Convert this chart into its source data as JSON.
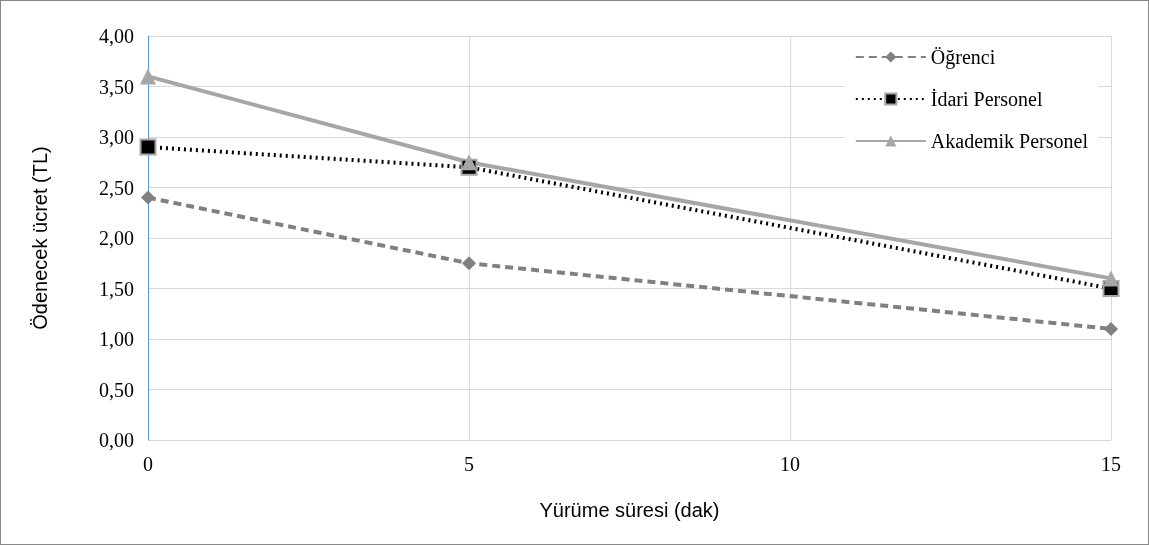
{
  "chart_data": {
    "type": "line",
    "xlabel": "Yürüme süresi (dak)",
    "ylabel": "Ödenecek ücret (TL)",
    "x": [
      0,
      5,
      15
    ],
    "series": [
      {
        "name": "Öğrenci",
        "color": "#808080",
        "marker": "diamond",
        "line_style": "dashed",
        "values": [
          2.4,
          1.75,
          1.1
        ]
      },
      {
        "name": "İdari Personel",
        "color": "#000000",
        "marker": "square",
        "line_style": "dotted",
        "values": [
          2.9,
          2.7,
          1.5
        ]
      },
      {
        "name": "Akademik Personel",
        "color": "#a6a6a6",
        "marker": "triangle",
        "line_style": "solid",
        "values": [
          3.6,
          2.75,
          1.6
        ]
      }
    ],
    "xlim": [
      0,
      15
    ],
    "xticks": [
      0,
      5,
      10,
      15
    ],
    "ylim": [
      0,
      4
    ],
    "yticks": [
      {
        "value": 0,
        "label": "0,00"
      },
      {
        "value": 0.5,
        "label": "0,50"
      },
      {
        "value": 1,
        "label": "1,00"
      },
      {
        "value": 1.5,
        "label": "1,50"
      },
      {
        "value": 2,
        "label": "2,00"
      },
      {
        "value": 2.5,
        "label": "2,50"
      },
      {
        "value": 3,
        "label": "3,00"
      },
      {
        "value": 3.5,
        "label": "3,50"
      },
      {
        "value": 4,
        "label": "4,00"
      }
    ],
    "grid": true,
    "legend": "top right"
  }
}
